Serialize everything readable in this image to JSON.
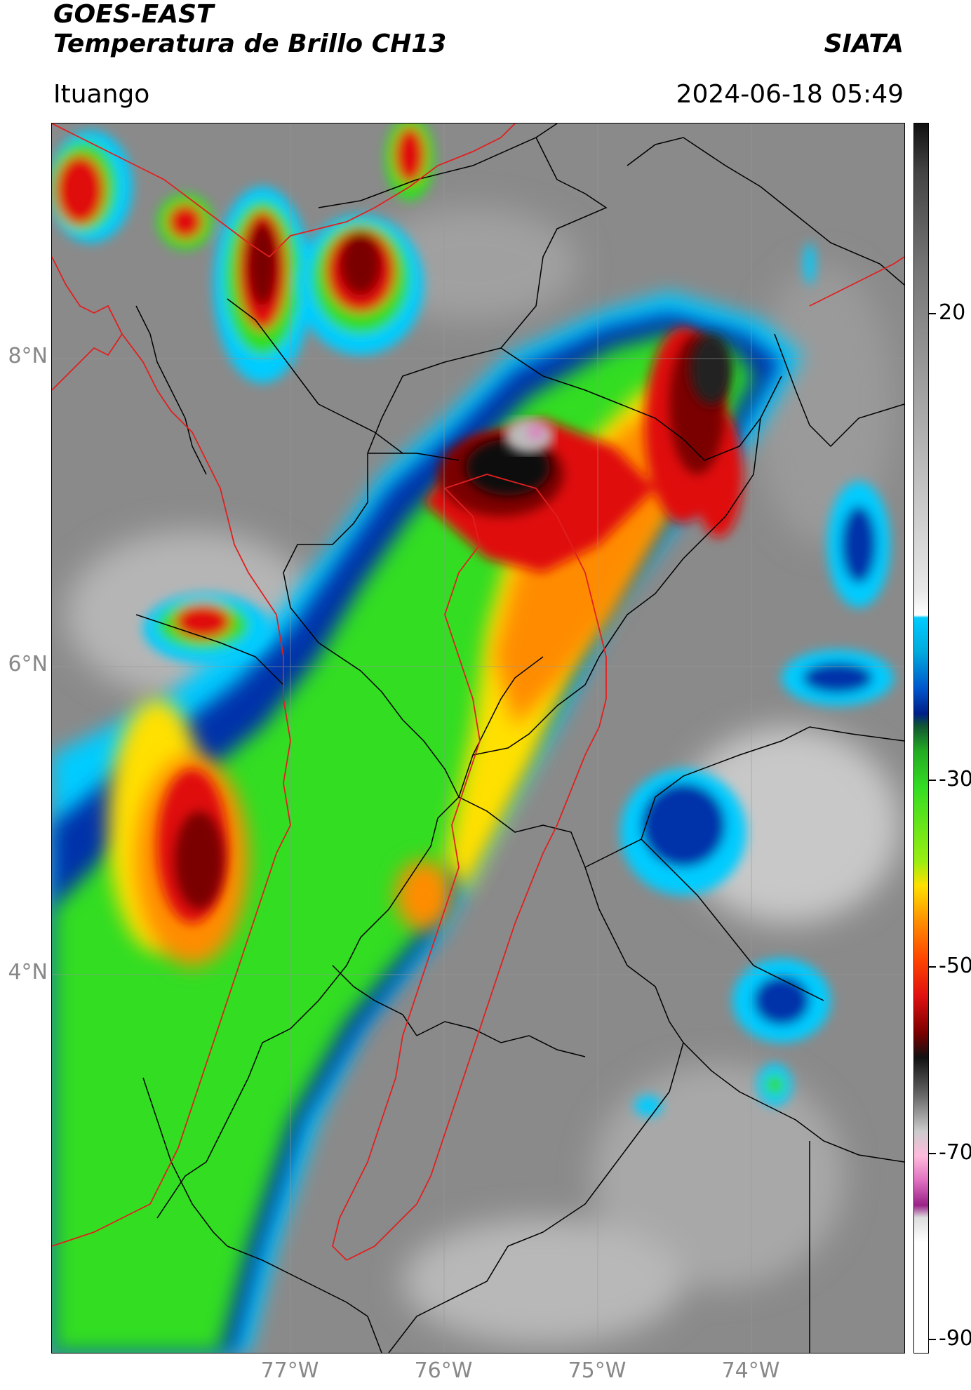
{
  "header": {
    "title_line1": "GOES-EAST",
    "title_line2": "Temperatura de Brillo CH13",
    "organization": "SIATA",
    "location": "Ituango",
    "timestamp": "2024-06-18 05:49"
  },
  "map": {
    "lat_labels": [
      "8°N",
      "6°N",
      "4°N"
    ],
    "lon_labels": [
      "77°W",
      "76°W",
      "75°W",
      "74°W"
    ],
    "colors": {
      "coldest_top": "#111111",
      "deep_red": "#7a0000",
      "red": "#e01010",
      "orange": "#ff8c00",
      "yellow": "#ffe000",
      "green": "#33dd22",
      "blue": "#0033aa",
      "cyan": "#00ccff",
      "background_gray": "#8a8a8a",
      "boundary_red": "#e02020",
      "boundary_black": "#000000",
      "overshoot_pink": "#e070c0"
    }
  },
  "colorbar": {
    "tick_labels": [
      "20",
      "-30",
      "-50",
      "-70",
      "-90"
    ]
  }
}
